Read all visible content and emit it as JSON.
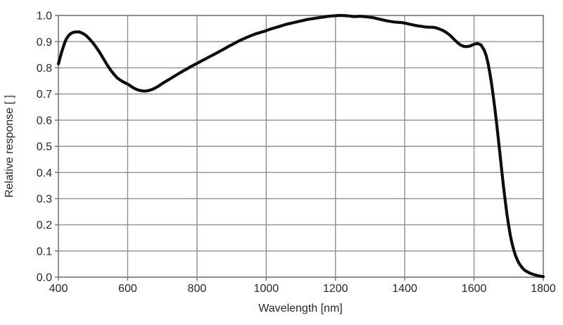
{
  "chart_data": {
    "type": "line",
    "title": "",
    "xlabel": "Wavelength [nm]",
    "ylabel": "Relative response [ ]",
    "xlim": [
      400,
      1800
    ],
    "ylim": [
      0.0,
      1.0
    ],
    "grid": true,
    "legend": "none",
    "line_color": "#0d0d0d",
    "grid_color": "#8f8f8f",
    "frame_color": "#7f7f7f",
    "label_color": "#262626",
    "x_tick_values": [
      400,
      600,
      800,
      1000,
      1200,
      1400,
      1600,
      1800
    ],
    "x_tick_labels": [
      "400",
      "600",
      "800",
      "1000",
      "1200",
      "1400",
      "1600",
      "1800"
    ],
    "y_tick_values": [
      0.0,
      0.1,
      0.2,
      0.3,
      0.4,
      0.5,
      0.6,
      0.7,
      0.8,
      0.9,
      1.0
    ],
    "y_tick_labels": [
      "0.0",
      "0.1",
      "0.2",
      "0.3",
      "0.4",
      "0.5",
      "0.6",
      "0.7",
      "0.8",
      "0.9",
      "1.0"
    ],
    "series": [
      {
        "name": "relative-response",
        "points": [
          [
            400,
            0.815
          ],
          [
            405,
            0.84
          ],
          [
            410,
            0.863
          ],
          [
            415,
            0.884
          ],
          [
            420,
            0.902
          ],
          [
            425,
            0.915
          ],
          [
            430,
            0.924
          ],
          [
            435,
            0.93
          ],
          [
            440,
            0.934
          ],
          [
            445,
            0.936
          ],
          [
            450,
            0.937
          ],
          [
            460,
            0.937
          ],
          [
            470,
            0.932
          ],
          [
            480,
            0.923
          ],
          [
            490,
            0.91
          ],
          [
            500,
            0.895
          ],
          [
            510,
            0.877
          ],
          [
            520,
            0.857
          ],
          [
            530,
            0.835
          ],
          [
            540,
            0.813
          ],
          [
            550,
            0.793
          ],
          [
            560,
            0.776
          ],
          [
            570,
            0.761
          ],
          [
            580,
            0.752
          ],
          [
            590,
            0.744
          ],
          [
            600,
            0.738
          ],
          [
            610,
            0.729
          ],
          [
            620,
            0.721
          ],
          [
            630,
            0.715
          ],
          [
            640,
            0.712
          ],
          [
            650,
            0.711
          ],
          [
            660,
            0.713
          ],
          [
            670,
            0.717
          ],
          [
            680,
            0.723
          ],
          [
            690,
            0.731
          ],
          [
            700,
            0.74
          ],
          [
            710,
            0.748
          ],
          [
            720,
            0.756
          ],
          [
            730,
            0.764
          ],
          [
            740,
            0.772
          ],
          [
            750,
            0.78
          ],
          [
            760,
            0.788
          ],
          [
            770,
            0.795
          ],
          [
            780,
            0.803
          ],
          [
            790,
            0.81
          ],
          [
            800,
            0.817
          ],
          [
            810,
            0.824
          ],
          [
            820,
            0.831
          ],
          [
            830,
            0.838
          ],
          [
            840,
            0.845
          ],
          [
            850,
            0.852
          ],
          [
            860,
            0.859
          ],
          [
            870,
            0.866
          ],
          [
            880,
            0.873
          ],
          [
            890,
            0.881
          ],
          [
            900,
            0.888
          ],
          [
            910,
            0.895
          ],
          [
            920,
            0.902
          ],
          [
            930,
            0.908
          ],
          [
            940,
            0.914
          ],
          [
            950,
            0.92
          ],
          [
            960,
            0.925
          ],
          [
            970,
            0.93
          ],
          [
            980,
            0.934
          ],
          [
            990,
            0.938
          ],
          [
            1000,
            0.942
          ],
          [
            1010,
            0.947
          ],
          [
            1020,
            0.951
          ],
          [
            1030,
            0.955
          ],
          [
            1040,
            0.959
          ],
          [
            1050,
            0.963
          ],
          [
            1060,
            0.967
          ],
          [
            1070,
            0.97
          ],
          [
            1080,
            0.973
          ],
          [
            1090,
            0.976
          ],
          [
            1100,
            0.979
          ],
          [
            1110,
            0.982
          ],
          [
            1120,
            0.985
          ],
          [
            1130,
            0.987
          ],
          [
            1140,
            0.989
          ],
          [
            1150,
            0.991
          ],
          [
            1160,
            0.993
          ],
          [
            1170,
            0.995
          ],
          [
            1180,
            0.997
          ],
          [
            1190,
            0.998
          ],
          [
            1200,
            0.999
          ],
          [
            1210,
            1.0
          ],
          [
            1220,
            1.0
          ],
          [
            1230,
            0.999
          ],
          [
            1240,
            0.998
          ],
          [
            1250,
            0.996
          ],
          [
            1260,
            0.996
          ],
          [
            1270,
            0.997
          ],
          [
            1280,
            0.996
          ],
          [
            1290,
            0.995
          ],
          [
            1300,
            0.993
          ],
          [
            1310,
            0.991
          ],
          [
            1320,
            0.988
          ],
          [
            1330,
            0.985
          ],
          [
            1340,
            0.982
          ],
          [
            1350,
            0.979
          ],
          [
            1360,
            0.977
          ],
          [
            1370,
            0.975
          ],
          [
            1380,
            0.974
          ],
          [
            1390,
            0.973
          ],
          [
            1400,
            0.971
          ],
          [
            1410,
            0.968
          ],
          [
            1420,
            0.965
          ],
          [
            1430,
            0.962
          ],
          [
            1440,
            0.96
          ],
          [
            1450,
            0.958
          ],
          [
            1460,
            0.956
          ],
          [
            1470,
            0.955
          ],
          [
            1480,
            0.955
          ],
          [
            1490,
            0.953
          ],
          [
            1500,
            0.948
          ],
          [
            1510,
            0.943
          ],
          [
            1520,
            0.935
          ],
          [
            1530,
            0.925
          ],
          [
            1540,
            0.912
          ],
          [
            1550,
            0.899
          ],
          [
            1560,
            0.888
          ],
          [
            1570,
            0.882
          ],
          [
            1580,
            0.881
          ],
          [
            1590,
            0.884
          ],
          [
            1600,
            0.89
          ],
          [
            1610,
            0.893
          ],
          [
            1620,
            0.888
          ],
          [
            1630,
            0.866
          ],
          [
            1635,
            0.847
          ],
          [
            1640,
            0.82
          ],
          [
            1645,
            0.786
          ],
          [
            1650,
            0.745
          ],
          [
            1655,
            0.698
          ],
          [
            1660,
            0.646
          ],
          [
            1665,
            0.59
          ],
          [
            1670,
            0.531
          ],
          [
            1675,
            0.47
          ],
          [
            1680,
            0.408
          ],
          [
            1685,
            0.348
          ],
          [
            1690,
            0.292
          ],
          [
            1695,
            0.241
          ],
          [
            1700,
            0.197
          ],
          [
            1705,
            0.159
          ],
          [
            1710,
            0.128
          ],
          [
            1715,
            0.102
          ],
          [
            1720,
            0.082
          ],
          [
            1725,
            0.066
          ],
          [
            1730,
            0.053
          ],
          [
            1735,
            0.043
          ],
          [
            1740,
            0.035
          ],
          [
            1745,
            0.028
          ],
          [
            1750,
            0.023
          ],
          [
            1760,
            0.016
          ],
          [
            1770,
            0.011
          ],
          [
            1780,
            0.007
          ],
          [
            1790,
            0.004
          ],
          [
            1800,
            0.002
          ]
        ]
      }
    ]
  }
}
